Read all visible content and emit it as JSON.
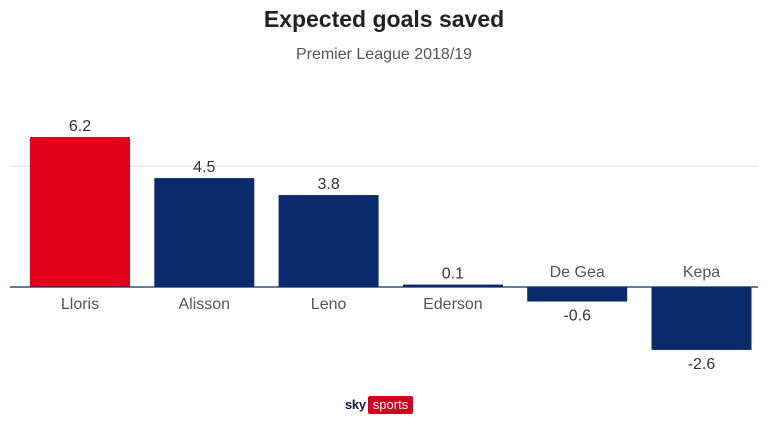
{
  "header": {
    "title": "Expected goals saved",
    "subtitle": "Premier League 2018/19"
  },
  "logo": {
    "sky": "sky",
    "sports": "sports"
  },
  "chart_data": {
    "type": "bar",
    "title": "Expected goals saved",
    "subtitle": "Premier League 2018/19",
    "categories": [
      "Lloris",
      "Alisson",
      "Leno",
      "Ederson",
      "De Gea",
      "Kepa"
    ],
    "values": [
      6.2,
      4.5,
      3.8,
      0.1,
      -0.6,
      -2.6
    ],
    "value_labels": [
      "6.2",
      "4.5",
      "3.8",
      "0.1",
      "-0.6",
      "-2.6"
    ],
    "ylim": [
      -2.6,
      6.2
    ],
    "gridline_values": [
      5
    ],
    "grid": true,
    "legend": "none",
    "colors": {
      "highlight": "#e3001b",
      "default": "#0b2a6b",
      "axis": "#0b2a6b",
      "grid": "#dddddd",
      "label": "#555555"
    },
    "highlight_index": 0
  }
}
